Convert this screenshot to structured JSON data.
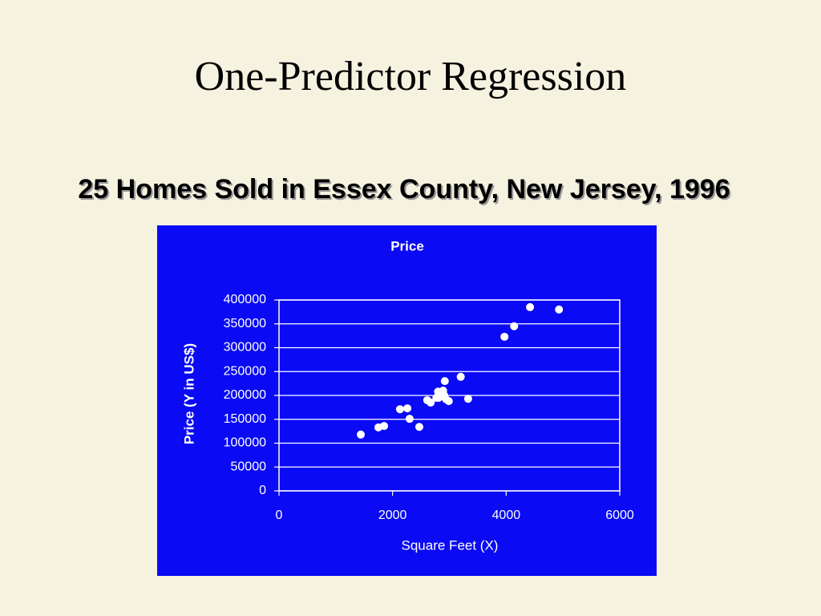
{
  "slide": {
    "title": "One-Predictor Regression",
    "subtitle": "25 Homes Sold in Essex County, New Jersey, 1996"
  },
  "chart_data": {
    "type": "scatter",
    "title": "Price",
    "x_label": "Square Feet (X)",
    "y_label": "Price (Y in US$)",
    "background": "#0a0af5",
    "grid": true,
    "xlim": [
      0,
      6000
    ],
    "xticks": [
      0,
      2000,
      4000,
      6000
    ],
    "ylim": [
      0,
      400000
    ],
    "yticks": [
      0,
      50000,
      100000,
      150000,
      200000,
      250000,
      300000,
      350000,
      400000
    ],
    "series": [
      {
        "color": "#ffffff",
        "x": [
          1440,
          1750,
          1850,
          2130,
          2260,
          2300,
          2470,
          2610,
          2670,
          2800,
          2770,
          2840,
          2890,
          2920,
          2910,
          2990,
          3200,
          3330,
          3970,
          4140,
          4420,
          4930,
          2810,
          2940,
          2880
        ],
        "values": [
          118000,
          133000,
          136000,
          171000,
          173000,
          151000,
          134000,
          190000,
          185000,
          208000,
          195000,
          198000,
          210000,
          230000,
          200000,
          188000,
          239000,
          193000,
          323000,
          345000,
          385000,
          380000,
          195000,
          192000,
          205000
        ]
      }
    ]
  }
}
